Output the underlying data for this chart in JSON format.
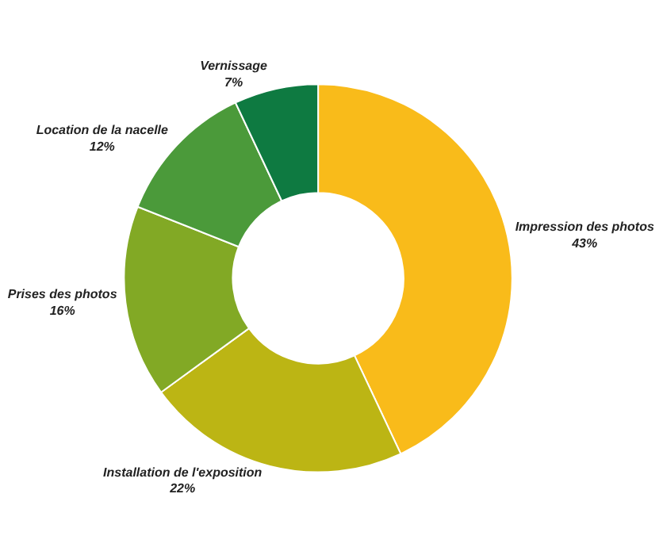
{
  "chart_data": {
    "type": "donut",
    "categories": [
      "Impression des photos",
      "Installation de l'exposition",
      "Prises des photos",
      "Location de la nacelle",
      "Vernissage"
    ],
    "values": [
      43,
      22,
      16,
      12,
      7
    ],
    "value_labels": [
      "43%",
      "22%",
      "16%",
      "12%",
      "7%"
    ],
    "colors": [
      "#f9bb1a",
      "#bcb514",
      "#82a925",
      "#4b9a3a",
      "#0e7a41"
    ],
    "legend": false
  }
}
